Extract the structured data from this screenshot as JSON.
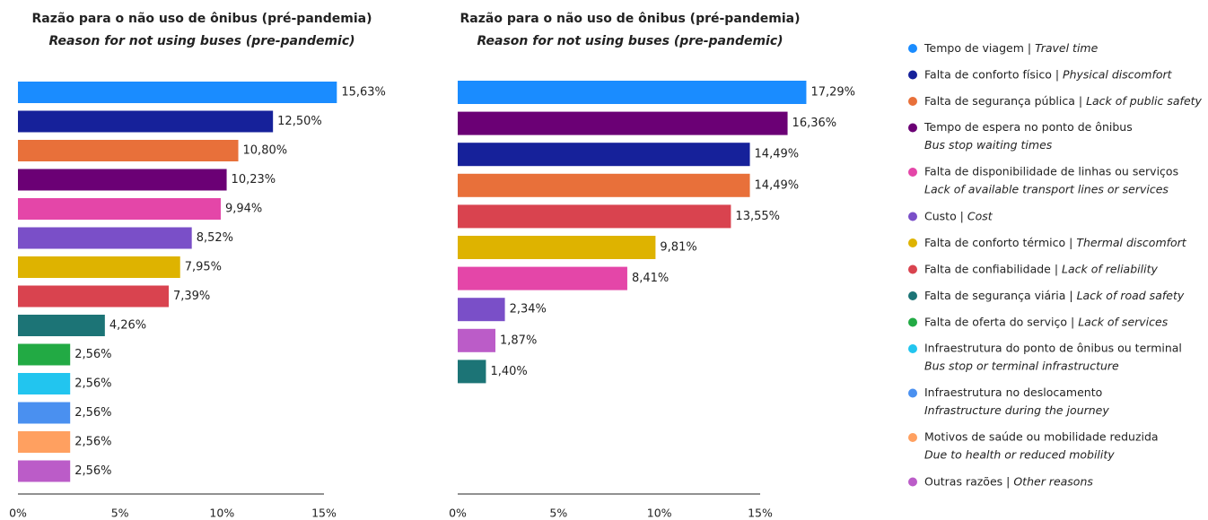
{
  "chart_data": [
    {
      "type": "barh",
      "title": "Razão para o não uso de ônibus (pré-pandemia)",
      "subtitle": "Reason for not using buses (pre-pandemic)",
      "values": [
        15.63,
        12.5,
        10.8,
        10.23,
        9.94,
        8.52,
        7.95,
        7.39,
        4.26,
        2.56,
        2.56,
        2.56,
        2.56,
        2.56
      ],
      "value_labels": [
        "15,63%",
        "12,50%",
        "10,80%",
        "10,23%",
        "9,94%",
        "8,52%",
        "7,95%",
        "7,39%",
        "4,26%",
        "2,56%",
        "2,56%",
        "2,56%",
        "2,56%",
        "2,56%"
      ],
      "colors": [
        "#1a8cff",
        "#16219a",
        "#e8703a",
        "#6b0075",
        "#e446a8",
        "#7a4fc8",
        "#deb300",
        "#d9434f",
        "#1c7476",
        "#22aa44",
        "#22c5ef",
        "#4a90f0",
        "#ffa060",
        "#bb5cc8"
      ],
      "xlim": [
        0,
        15
      ],
      "xticks": [
        {
          "value": 0,
          "label": "0%"
        },
        {
          "value": 5,
          "label": "5%"
        },
        {
          "value": 10,
          "label": "10%"
        },
        {
          "value": 15,
          "label": "15%"
        }
      ]
    },
    {
      "type": "barh",
      "title": "Razão para o não uso de ônibus (pré-pandemia)",
      "subtitle": "Reason for not using buses (pre-pandemic)",
      "values": [
        17.29,
        16.36,
        14.49,
        14.49,
        13.55,
        9.81,
        8.41,
        2.34,
        1.87,
        1.4
      ],
      "value_labels": [
        "17,29%",
        "16,36%",
        "14,49%",
        "14,49%",
        "13,55%",
        "9,81%",
        "8,41%",
        "2,34%",
        "1,87%",
        "1,40%"
      ],
      "colors": [
        "#1a8cff",
        "#6b0075",
        "#16219a",
        "#e8703a",
        "#d9434f",
        "#deb300",
        "#e446a8",
        "#7a4fc8",
        "#bb5cc8",
        "#1c7476"
      ],
      "xlim": [
        0,
        15
      ],
      "xticks": [
        {
          "value": 0,
          "label": "0%"
        },
        {
          "value": 5,
          "label": "5%"
        },
        {
          "value": 10,
          "label": "10%"
        },
        {
          "value": 15,
          "label": "15%"
        }
      ]
    }
  ],
  "legend": {
    "items": [
      {
        "label": "Tempo de viagem |",
        "label_en": "Travel time",
        "color": "#1a8cff"
      },
      {
        "label": "Falta de conforto físico |",
        "label_en": "Physical discomfort",
        "color": "#16219a"
      },
      {
        "label": "Falta de segurança pública |",
        "label_en": "Lack of public safety",
        "color": "#e8703a"
      },
      {
        "label": "Tempo de espera no ponto de ônibus",
        "label_en": "Bus stop waiting times",
        "color": "#6b0075"
      },
      {
        "label": "Falta de disponibilidade de linhas ou serviços",
        "label_en": "Lack of available transport lines or services",
        "color": "#e446a8"
      },
      {
        "label": "Custo |",
        "label_en": "Cost",
        "color": "#7a4fc8"
      },
      {
        "label": "Falta de conforto térmico |",
        "label_en": "Thermal discomfort",
        "color": "#deb300"
      },
      {
        "label": "Falta de confiabilidade |",
        "label_en": "Lack of reliability",
        "color": "#d9434f"
      },
      {
        "label": "Falta de segurança viária |",
        "label_en": "Lack of road safety",
        "color": "#1c7476"
      },
      {
        "label": "Falta de oferta do serviço |",
        "label_en": "Lack of services",
        "color": "#22aa44"
      },
      {
        "label": "Infraestrutura do ponto de ônibus ou terminal",
        "label_en": "Bus stop or terminal infrastructure",
        "color": "#22c5ef"
      },
      {
        "label": "Infraestrutura no deslocamento",
        "label_en": "Infrastructure during the journey",
        "color": "#4a90f0"
      },
      {
        "label": "Motivos de saúde ou mobilidade reduzida",
        "label_en": "Due to health or reduced mobility",
        "color": "#ffa060"
      },
      {
        "label": "Outras razões |",
        "label_en": "Other reasons",
        "color": "#bb5cc8"
      }
    ]
  }
}
